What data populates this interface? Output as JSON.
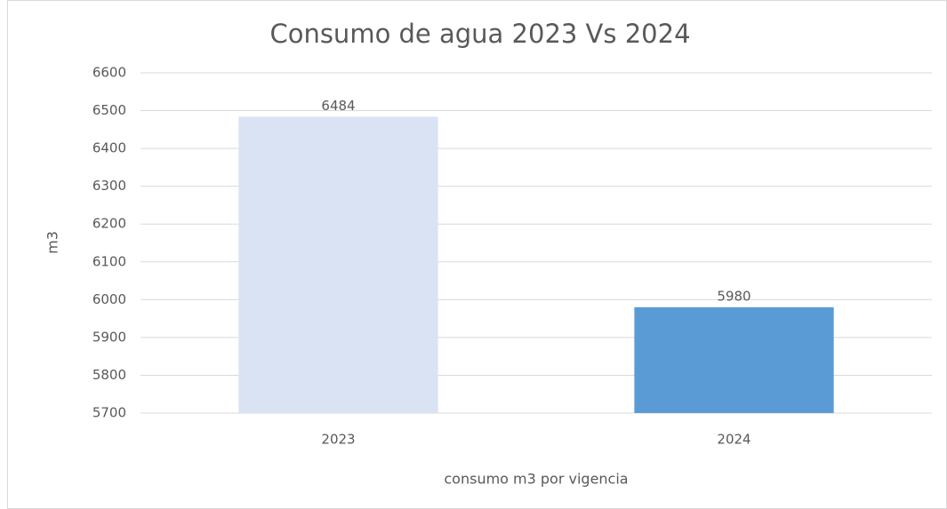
{
  "chart_data": {
    "type": "bar",
    "title": "Consumo de agua 2023 Vs 2024",
    "categories": [
      "2023",
      "2024"
    ],
    "values": [
      6484,
      5980
    ],
    "colors": [
      "#dae3f3",
      "#5b9bd5"
    ],
    "ylabel": "m3",
    "xlabel": "consumo m3 por vigencia",
    "ylim": [
      5700,
      6600
    ],
    "yticks": [
      5700,
      5800,
      5900,
      6000,
      6100,
      6200,
      6300,
      6400,
      6500,
      6600
    ],
    "grid": true
  }
}
